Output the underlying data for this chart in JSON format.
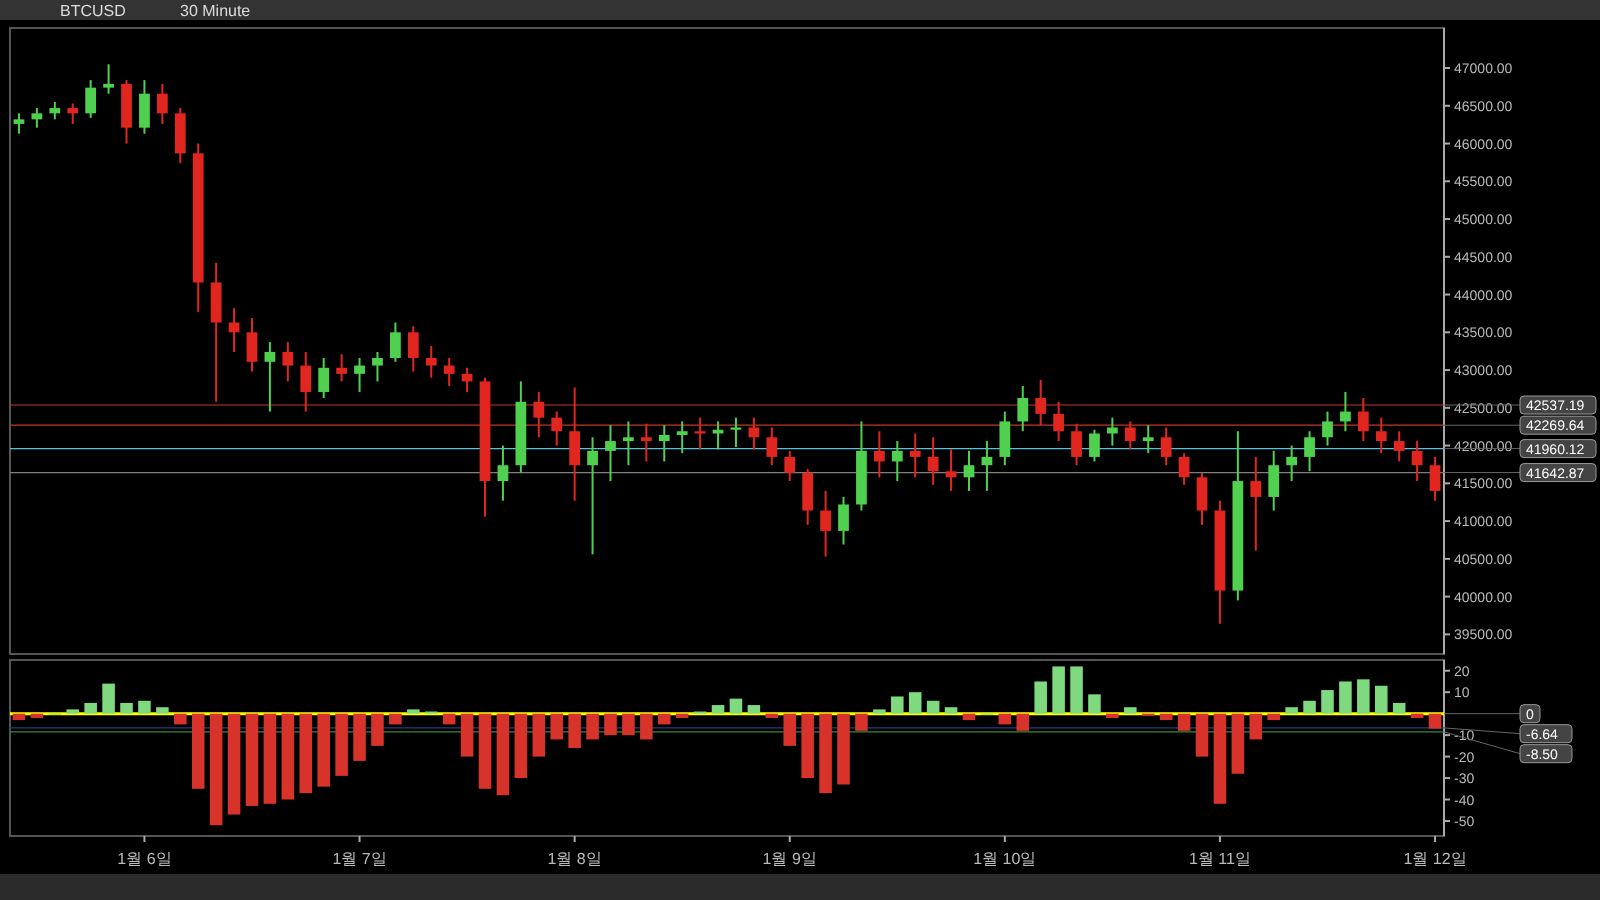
{
  "chart_data": [
    {
      "type": "candlestick",
      "title": "BTCUSD",
      "subtitle": "30 Minute",
      "tick_labels": "y",
      "categories": [
        null,
        null,
        null,
        null,
        null,
        null,
        null,
        null,
        null,
        null,
        null,
        null,
        null,
        null,
        null,
        null,
        null,
        null,
        null,
        null,
        null,
        null,
        null,
        null,
        null,
        null,
        null,
        null,
        null,
        null,
        null,
        null,
        null,
        null,
        null,
        null,
        null,
        null,
        null,
        null,
        null,
        null,
        null,
        null,
        null,
        null,
        null,
        null,
        null,
        null,
        null,
        null,
        null,
        null,
        null,
        null,
        null,
        null,
        null,
        null,
        null,
        null,
        null,
        null,
        null,
        null,
        null,
        null,
        null,
        null,
        null,
        null,
        null,
        null,
        null,
        null,
        null,
        null,
        null,
        null
      ],
      "ohlc": [
        [
          46260,
          46400,
          46130,
          46320
        ],
        [
          46320,
          46470,
          46210,
          46400
        ],
        [
          46400,
          46550,
          46320,
          46470
        ],
        [
          46470,
          46530,
          46260,
          46400
        ],
        [
          46400,
          46840,
          46340,
          46740
        ],
        [
          46740,
          47050,
          46660,
          46790
        ],
        [
          46790,
          46840,
          46000,
          46210
        ],
        [
          46210,
          46840,
          46130,
          46660
        ],
        [
          46660,
          46790,
          46260,
          46400
        ],
        [
          46400,
          46470,
          45740,
          45870
        ],
        [
          45870,
          46000,
          43770,
          44160
        ],
        [
          44160,
          44420,
          42580,
          43630
        ],
        [
          43630,
          43820,
          43240,
          43500
        ],
        [
          43500,
          43690,
          42980,
          43110
        ],
        [
          43110,
          43370,
          42450,
          43240
        ],
        [
          43240,
          43370,
          42850,
          43060
        ],
        [
          43060,
          43240,
          42450,
          42710
        ],
        [
          42710,
          43160,
          42630,
          43030
        ],
        [
          43030,
          43210,
          42850,
          42950
        ],
        [
          42950,
          43160,
          42710,
          43060
        ],
        [
          43060,
          43240,
          42850,
          43160
        ],
        [
          43160,
          43630,
          43110,
          43500
        ],
        [
          43500,
          43580,
          42980,
          43160
        ],
        [
          43160,
          43320,
          42900,
          43060
        ],
        [
          43060,
          43160,
          42790,
          42950
        ],
        [
          42950,
          43030,
          42710,
          42850
        ],
        [
          42850,
          42900,
          41060,
          41530
        ],
        [
          41530,
          42000,
          41270,
          41740
        ],
        [
          41740,
          42850,
          41640,
          42580
        ],
        [
          42580,
          42710,
          42110,
          42370
        ],
        [
          42370,
          42450,
          42000,
          42190
        ],
        [
          42190,
          42770,
          41270,
          41740
        ],
        [
          41740,
          42110,
          40560,
          41930
        ],
        [
          41930,
          42270,
          41530,
          42060
        ],
        [
          42060,
          42320,
          41740,
          42110
        ],
        [
          42110,
          42290,
          41790,
          42060
        ],
        [
          42060,
          42270,
          41790,
          42140
        ],
        [
          42140,
          42320,
          41900,
          42190
        ],
        [
          42190,
          42370,
          41950,
          42160
        ],
        [
          42160,
          42320,
          41950,
          42210
        ],
        [
          42210,
          42370,
          41980,
          42240
        ],
        [
          42240,
          42370,
          41950,
          42110
        ],
        [
          42110,
          42240,
          41740,
          41850
        ],
        [
          41850,
          41930,
          41530,
          41640
        ],
        [
          41640,
          41690,
          40950,
          41140
        ],
        [
          41140,
          41400,
          40530,
          40870
        ],
        [
          40870,
          41320,
          40690,
          41220
        ],
        [
          41220,
          42320,
          41140,
          41930
        ],
        [
          41930,
          42190,
          41580,
          41790
        ],
        [
          41790,
          42060,
          41530,
          41930
        ],
        [
          41930,
          42160,
          41580,
          41850
        ],
        [
          41850,
          42110,
          41480,
          41660
        ],
        [
          41660,
          41950,
          41400,
          41580
        ],
        [
          41580,
          41930,
          41400,
          41740
        ],
        [
          41740,
          42060,
          41400,
          41850
        ],
        [
          41850,
          42450,
          41740,
          42320
        ],
        [
          42320,
          42790,
          42190,
          42630
        ],
        [
          42630,
          42870,
          42270,
          42420
        ],
        [
          42420,
          42580,
          42060,
          42190
        ],
        [
          42190,
          42290,
          41740,
          41850
        ],
        [
          41850,
          42210,
          41790,
          42160
        ],
        [
          42160,
          42370,
          42000,
          42240
        ],
        [
          42240,
          42320,
          41950,
          42060
        ],
        [
          42060,
          42270,
          41900,
          42110
        ],
        [
          42110,
          42240,
          41740,
          41850
        ],
        [
          41850,
          41900,
          41480,
          41580
        ],
        [
          41580,
          41640,
          40950,
          41140
        ],
        [
          41140,
          41270,
          39640,
          40080
        ],
        [
          40080,
          42190,
          39950,
          41530
        ],
        [
          41530,
          41850,
          40610,
          41320
        ],
        [
          41320,
          41930,
          41140,
          41740
        ],
        [
          41740,
          42000,
          41530,
          41850
        ],
        [
          41850,
          42190,
          41660,
          42110
        ],
        [
          42110,
          42450,
          42000,
          42320
        ],
        [
          42320,
          42710,
          42190,
          42450
        ],
        [
          42450,
          42630,
          42060,
          42190
        ],
        [
          42190,
          42370,
          41900,
          42060
        ],
        [
          42060,
          42190,
          41790,
          41930
        ],
        [
          41930,
          42060,
          41530,
          41740
        ],
        [
          41740,
          41850,
          41270,
          41400
        ]
      ],
      "colors": [
        "#4fd14f",
        "#4fd14f",
        "#4fd14f",
        "#e0261e",
        "#4fd14f",
        "#4fd14f",
        "#e0261e",
        "#4fd14f",
        "#e0261e",
        "#e0261e",
        "#e0261e",
        "#e0261e",
        "#e0261e",
        "#e0261e",
        "#4fd14f",
        "#e0261e",
        "#e0261e",
        "#4fd14f",
        "#e0261e",
        "#4fd14f",
        "#4fd14f",
        "#4fd14f",
        "#e0261e",
        "#e0261e",
        "#e0261e",
        "#e0261e",
        "#e0261e",
        "#4fd14f",
        "#4fd14f",
        "#e0261e",
        "#e0261e",
        "#e0261e",
        "#4fd14f",
        "#4fd14f",
        "#4fd14f",
        "#e0261e",
        "#4fd14f",
        "#4fd14f",
        "#e0261e",
        "#4fd14f",
        "#4fd14f",
        "#e0261e",
        "#e0261e",
        "#e0261e",
        "#e0261e",
        "#e0261e",
        "#4fd14f",
        "#4fd14f",
        "#e0261e",
        "#4fd14f",
        "#e0261e",
        "#e0261e",
        "#e0261e",
        "#4fd14f",
        "#4fd14f",
        "#4fd14f",
        "#4fd14f",
        "#e0261e",
        "#e0261e",
        "#e0261e",
        "#4fd14f",
        "#4fd14f",
        "#e0261e",
        "#4fd14f",
        "#e0261e",
        "#e0261e",
        "#e0261e",
        "#e0261e",
        "#4fd14f",
        "#e0261e",
        "#4fd14f",
        "#4fd14f",
        "#4fd14f",
        "#4fd14f",
        "#4fd14f",
        "#e0261e",
        "#e0261e",
        "#e0261e",
        "#e0261e",
        "#e0261e"
      ],
      "ylim": [
        39240,
        47530
      ],
      "yticks": [
        {
          "value": 39500,
          "label": "39500.00"
        },
        {
          "value": 40000,
          "label": "40000.00"
        },
        {
          "value": 40500,
          "label": "40500.00"
        },
        {
          "value": 41000,
          "label": "41000.00"
        },
        {
          "value": 41500,
          "label": "41500.00"
        },
        {
          "value": 42000,
          "label": "42000.00"
        },
        {
          "value": 42500,
          "label": "42500.00"
        },
        {
          "value": 43000,
          "label": "43000.00"
        },
        {
          "value": 43500,
          "label": "43500.00"
        },
        {
          "value": 44000,
          "label": "44000.00"
        },
        {
          "value": 44500,
          "label": "44500.00"
        },
        {
          "value": 45000,
          "label": "45000.00"
        },
        {
          "value": 45500,
          "label": "45500.00"
        },
        {
          "value": 46000,
          "label": "46000.00"
        },
        {
          "value": 46500,
          "label": "46500.00"
        },
        {
          "value": 47000,
          "label": "47000.00"
        }
      ],
      "ref_lines": [
        {
          "axis": "y",
          "value": 42537.19,
          "label": "42537.19",
          "color": "#c0392b"
        },
        {
          "axis": "y",
          "value": 42269.64,
          "label": "42269.64",
          "color": "#c0392b"
        },
        {
          "axis": "y",
          "value": 41960.12,
          "label": "41960.12",
          "color": "#5bc0de"
        },
        {
          "axis": "y",
          "value": 41642.87,
          "label": "41642.87",
          "color": "#7f7f7f"
        }
      ]
    },
    {
      "type": "bar",
      "categories": [
        null,
        null,
        null,
        null,
        null,
        null,
        null,
        "1월 6일",
        null,
        null,
        null,
        null,
        null,
        null,
        null,
        null,
        null,
        null,
        null,
        "1월 7일",
        null,
        null,
        null,
        null,
        null,
        null,
        null,
        null,
        null,
        null,
        null,
        "1월 8일",
        null,
        null,
        null,
        null,
        null,
        null,
        null,
        null,
        null,
        null,
        null,
        "1월 9일",
        null,
        null,
        null,
        null,
        null,
        null,
        null,
        null,
        null,
        null,
        null,
        "1월 10일",
        null,
        null,
        null,
        null,
        null,
        null,
        null,
        null,
        null,
        null,
        null,
        "1월 11일",
        null,
        null,
        null,
        null,
        null,
        null,
        null,
        null,
        null,
        null,
        null,
        "1월 12일"
      ],
      "values": [
        -3,
        -2,
        0,
        2,
        5,
        14,
        5,
        6,
        3,
        -5,
        -35,
        -52,
        -47,
        -43,
        -42,
        -40,
        -37,
        -34,
        -29,
        -22,
        -15,
        -5,
        2,
        1,
        -5,
        -20,
        -35,
        -38,
        -30,
        -20,
        -12,
        -16,
        -12,
        -10,
        -10,
        -12,
        -5,
        -2,
        1,
        4,
        7,
        4,
        -2,
        -15,
        -30,
        -37,
        -33,
        -8,
        2,
        8,
        10,
        6,
        3,
        -3,
        0,
        -5,
        -8,
        15,
        22,
        22,
        9,
        -2,
        3,
        -1,
        -3,
        -8,
        -20,
        -42,
        -28,
        -12,
        -3,
        3,
        6,
        11,
        15,
        16,
        13,
        5,
        -2,
        -7
      ],
      "colors": [
        "#d8332a",
        "#d8332a",
        "#7fd97f",
        "#7fd97f",
        "#7fd97f",
        "#7fd97f",
        "#7fd97f",
        "#7fd97f",
        "#7fd97f",
        "#d8332a",
        "#d8332a",
        "#d8332a",
        "#d8332a",
        "#d8332a",
        "#d8332a",
        "#d8332a",
        "#d8332a",
        "#d8332a",
        "#d8332a",
        "#d8332a",
        "#d8332a",
        "#d8332a",
        "#7fd97f",
        "#7fd97f",
        "#d8332a",
        "#d8332a",
        "#d8332a",
        "#d8332a",
        "#d8332a",
        "#d8332a",
        "#d8332a",
        "#d8332a",
        "#d8332a",
        "#d8332a",
        "#d8332a",
        "#d8332a",
        "#d8332a",
        "#d8332a",
        "#7fd97f",
        "#7fd97f",
        "#7fd97f",
        "#7fd97f",
        "#d8332a",
        "#d8332a",
        "#d8332a",
        "#d8332a",
        "#d8332a",
        "#d8332a",
        "#7fd97f",
        "#7fd97f",
        "#7fd97f",
        "#7fd97f",
        "#7fd97f",
        "#d8332a",
        "#7fd97f",
        "#d8332a",
        "#d8332a",
        "#7fd97f",
        "#7fd97f",
        "#7fd97f",
        "#7fd97f",
        "#d8332a",
        "#7fd97f",
        "#d8332a",
        "#d8332a",
        "#d8332a",
        "#d8332a",
        "#d8332a",
        "#d8332a",
        "#d8332a",
        "#d8332a",
        "#7fd97f",
        "#7fd97f",
        "#7fd97f",
        "#7fd97f",
        "#7fd97f",
        "#7fd97f",
        "#7fd97f",
        "#d8332a",
        "#d8332a"
      ],
      "ylim": [
        -57,
        25
      ],
      "yticks": [
        20,
        10,
        -10,
        -20,
        -30,
        -40,
        -50
      ],
      "ref_lines": [
        {
          "axis": "y",
          "value": 0,
          "label": "0",
          "color": "#ffff00"
        },
        {
          "axis": "y",
          "value": -6.64,
          "label": "-6.64",
          "color": "#2a3a8a"
        },
        {
          "axis": "y",
          "value": -8.5,
          "label": "-8.50",
          "color": "#2e8b3a"
        }
      ]
    }
  ]
}
